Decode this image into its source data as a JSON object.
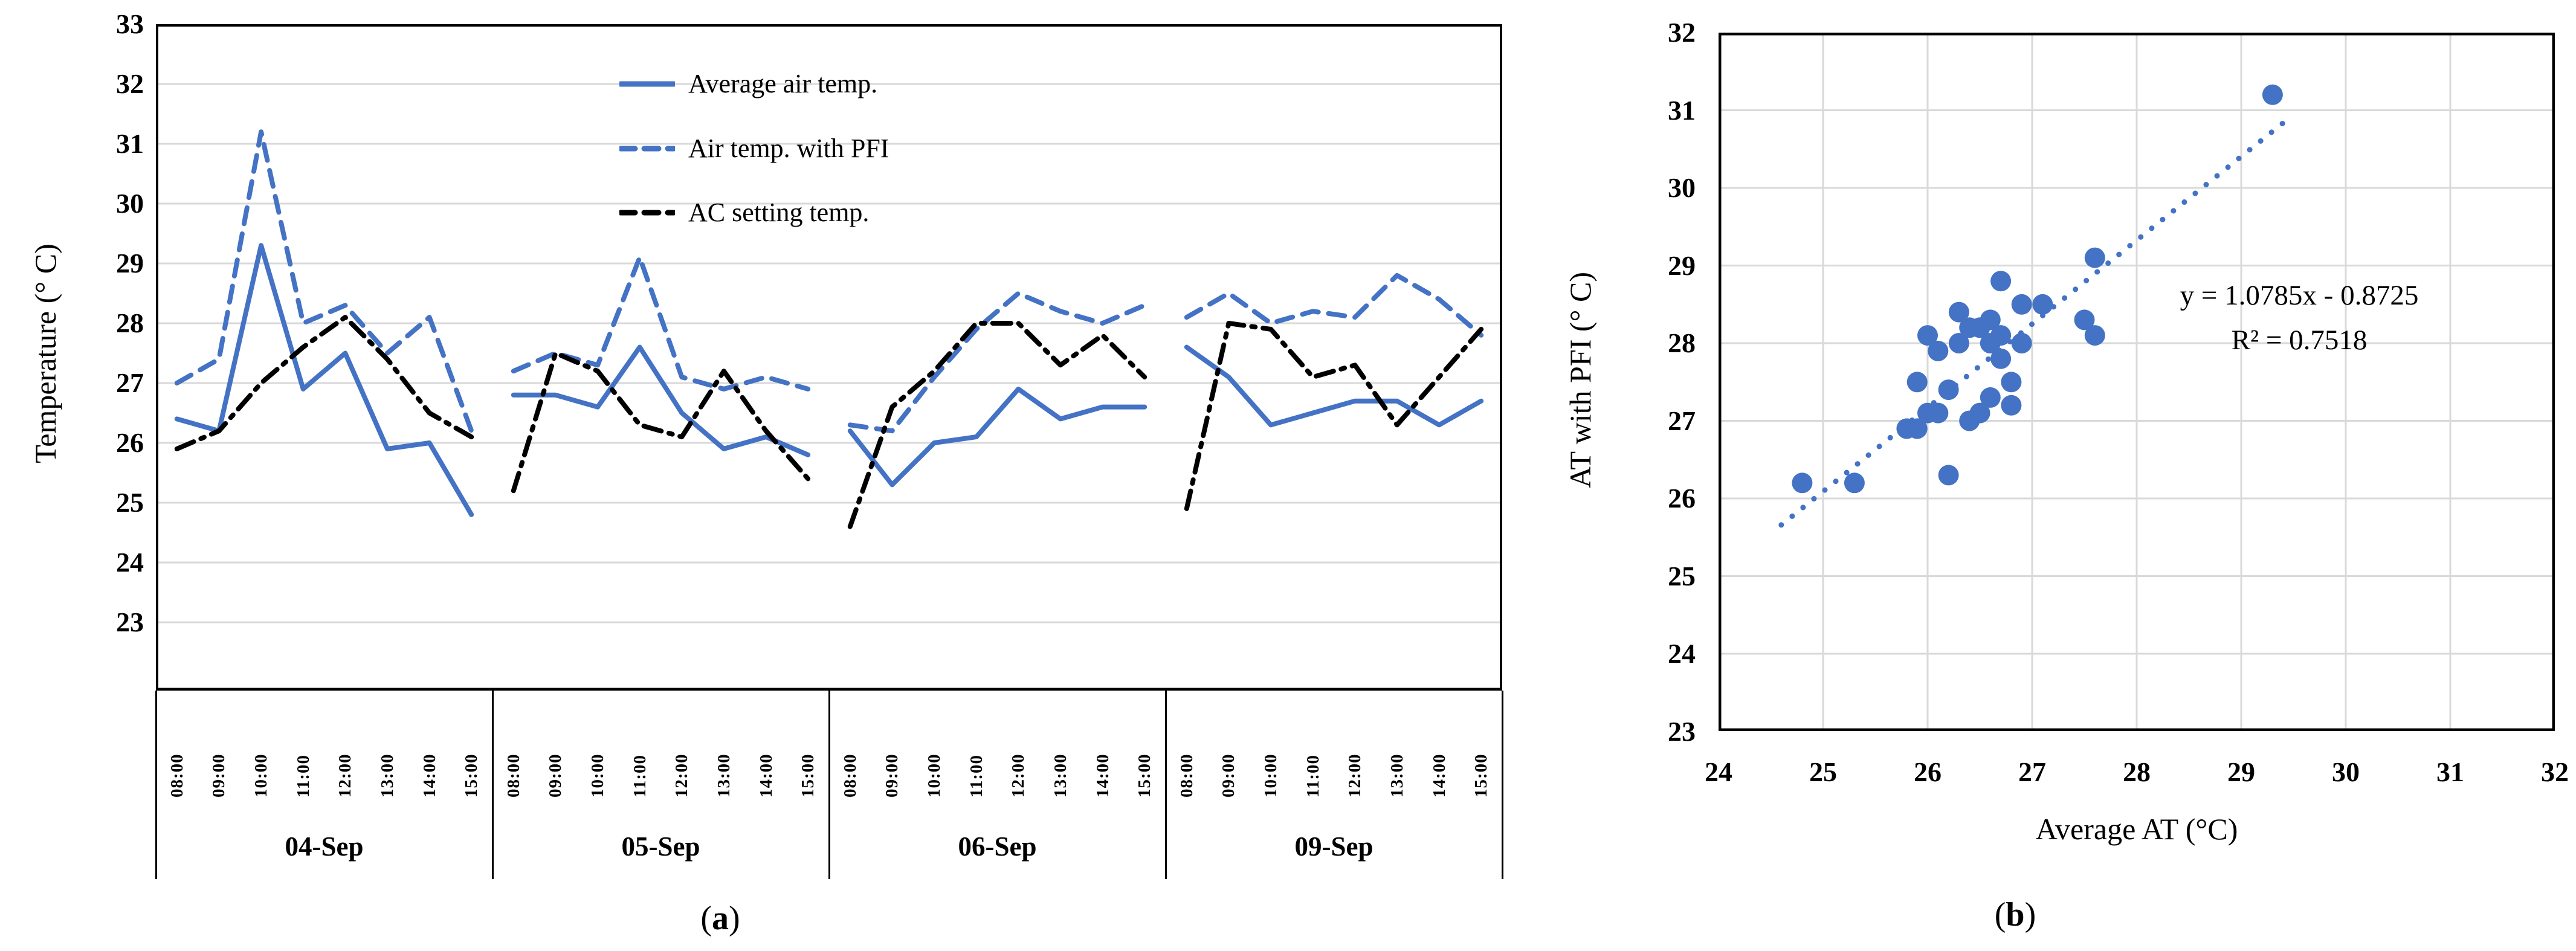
{
  "accent_color": "#4472C4",
  "grid_color": "#D9D9D9",
  "black": "#000000",
  "captions": {
    "a": {
      "open": "(",
      "letter": "a",
      "close": ")"
    },
    "b": {
      "open": "(",
      "letter": "b",
      "close": ")"
    }
  },
  "chart_data": [
    {
      "type": "line",
      "ylabel": "Temperature (° C)",
      "ylim": [
        23,
        33
      ],
      "yticks": [
        33,
        32,
        31,
        30,
        29,
        28,
        27,
        26,
        25,
        24,
        23
      ],
      "grid": true,
      "legend_position": "top-center-inside",
      "times": [
        "08:00",
        "09:00",
        "10:00",
        "11:00",
        "12:00",
        "13:00",
        "14:00",
        "15:00"
      ],
      "days": [
        "04-Sep",
        "05-Sep",
        "06-Sep",
        "09-Sep"
      ],
      "series": [
        {
          "name": "Average air temp.",
          "style": "solid-blue",
          "values_by_day": [
            [
              26.4,
              26.2,
              29.3,
              26.9,
              27.5,
              25.9,
              26.0,
              24.8
            ],
            [
              26.8,
              26.8,
              26.6,
              27.6,
              26.5,
              25.9,
              26.1,
              25.8
            ],
            [
              26.2,
              25.3,
              26.0,
              26.1,
              26.9,
              26.4,
              26.6,
              26.6
            ],
            [
              27.6,
              27.1,
              26.3,
              26.5,
              26.7,
              26.7,
              26.3,
              26.7
            ]
          ]
        },
        {
          "name": "Air temp. with PFI",
          "style": "dashed-blue",
          "values_by_day": [
            [
              27.0,
              27.4,
              31.2,
              28.0,
              28.3,
              27.5,
              28.1,
              26.2
            ],
            [
              27.2,
              27.5,
              27.3,
              29.1,
              27.1,
              26.9,
              27.1,
              26.9
            ],
            [
              26.3,
              26.2,
              27.1,
              27.9,
              28.5,
              28.2,
              28.0,
              28.3
            ],
            [
              28.1,
              28.5,
              28.0,
              28.2,
              28.1,
              28.8,
              28.4,
              27.8
            ]
          ]
        },
        {
          "name": "AC setting temp.",
          "style": "dashdot-black",
          "values_by_day": [
            [
              25.9,
              26.2,
              27.0,
              27.6,
              28.1,
              27.4,
              26.5,
              26.1
            ],
            [
              25.2,
              27.5,
              27.2,
              26.3,
              26.1,
              27.2,
              26.2,
              25.4
            ],
            [
              24.6,
              26.6,
              27.2,
              28.0,
              28.0,
              27.3,
              27.8,
              27.1
            ],
            [
              24.9,
              28.0,
              27.9,
              27.1,
              27.3,
              26.3,
              27.1,
              27.9
            ]
          ]
        }
      ]
    },
    {
      "type": "scatter",
      "xlabel": "Average AT (°C)",
      "ylabel": "AT with PFI (° C)",
      "xlim": [
        24,
        32
      ],
      "ylim": [
        23,
        32
      ],
      "xticks": [
        24,
        25,
        26,
        27,
        28,
        29,
        30,
        31,
        32
      ],
      "yticks": [
        32,
        31,
        30,
        29,
        28,
        27,
        26,
        25,
        24,
        23
      ],
      "grid": true,
      "points": [
        [
          26.4,
          27.0
        ],
        [
          26.2,
          27.4
        ],
        [
          29.3,
          31.2
        ],
        [
          26.9,
          28.0
        ],
        [
          27.5,
          28.3
        ],
        [
          25.9,
          27.5
        ],
        [
          26.0,
          28.1
        ],
        [
          24.8,
          26.2
        ],
        [
          26.8,
          27.2
        ],
        [
          26.8,
          27.5
        ],
        [
          26.6,
          27.3
        ],
        [
          27.6,
          29.1
        ],
        [
          26.5,
          27.1
        ],
        [
          25.9,
          26.9
        ],
        [
          26.1,
          27.1
        ],
        [
          25.8,
          26.9
        ],
        [
          26.2,
          26.3
        ],
        [
          25.3,
          26.2
        ],
        [
          26.0,
          27.1
        ],
        [
          26.1,
          27.9
        ],
        [
          26.9,
          28.5
        ],
        [
          26.4,
          28.2
        ],
        [
          26.6,
          28.0
        ],
        [
          26.6,
          28.3
        ],
        [
          27.6,
          28.1
        ],
        [
          27.1,
          28.5
        ],
        [
          26.3,
          28.0
        ],
        [
          26.5,
          28.2
        ],
        [
          26.7,
          28.1
        ],
        [
          26.7,
          28.8
        ],
        [
          26.3,
          28.4
        ],
        [
          26.7,
          27.8
        ]
      ],
      "trendline": {
        "slope": 1.0785,
        "intercept": -0.8725,
        "x_start": 24.6,
        "x_end": 29.45,
        "style": "dotted-blue"
      },
      "annotation": [
        "y = 1.0785x - 0.8725",
        "R² = 0.7518"
      ]
    }
  ]
}
